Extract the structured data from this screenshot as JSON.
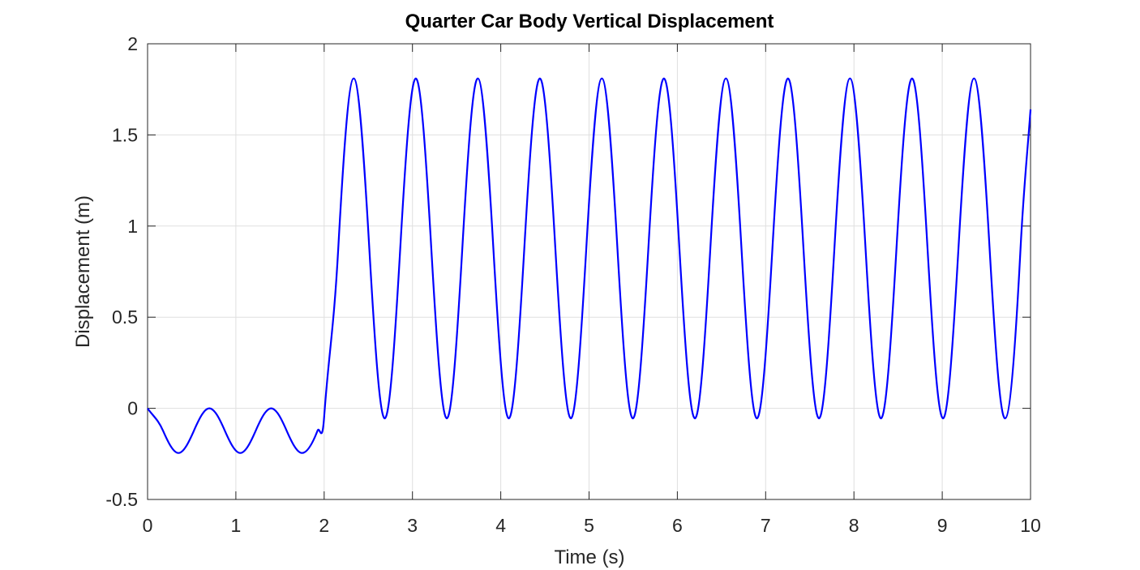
{
  "chart_data": {
    "type": "line",
    "title": "Quarter Car Body Vertical Displacement",
    "xlabel": "Time (s)",
    "ylabel": "Displacement (m)",
    "x": [
      0,
      0.175,
      0.35,
      0.525,
      0.7,
      0.875,
      1.05,
      1.225,
      1.4,
      1.575,
      1.75,
      1.925,
      2.0,
      2.16,
      2.335,
      2.511,
      2.686,
      2.862,
      3.038,
      3.213,
      3.389,
      3.565,
      3.74,
      3.916,
      4.091,
      4.267,
      4.443,
      4.618,
      4.794,
      4.969,
      5.145,
      5.321,
      5.496,
      5.672,
      5.848,
      6.023,
      6.199,
      6.374,
      6.55,
      6.726,
      6.901,
      7.077,
      7.253,
      7.428,
      7.604,
      7.779,
      7.955,
      8.131,
      8.306,
      8.482,
      8.658,
      8.833,
      9.009,
      9.184,
      9.36,
      9.536,
      9.711,
      9.887,
      10
    ],
    "series": [
      {
        "color": "#0000ff",
        "values": [
          0,
          -0.1225,
          -0.245,
          -0.1225,
          0,
          -0.1225,
          -0.245,
          -0.1225,
          0,
          -0.1225,
          -0.245,
          -0.1225,
          -0.046,
          0.88,
          1.81,
          0.88,
          -0.055,
          0.88,
          1.81,
          0.88,
          -0.055,
          0.88,
          1.81,
          0.88,
          -0.055,
          0.88,
          1.81,
          0.88,
          -0.055,
          0.88,
          1.81,
          0.88,
          -0.055,
          0.88,
          1.81,
          0.88,
          -0.055,
          0.88,
          1.81,
          0.88,
          -0.055,
          0.88,
          1.81,
          0.88,
          -0.055,
          0.88,
          1.81,
          0.88,
          -0.055,
          0.88,
          1.81,
          0.88,
          -0.055,
          0.88,
          1.81,
          0.88,
          -0.055,
          0.88,
          1.64
        ]
      }
    ],
    "xlim": [
      0,
      10
    ],
    "xticks": [
      0,
      1,
      2,
      3,
      4,
      5,
      6,
      7,
      8,
      9,
      10
    ],
    "ylim": [
      -0.5,
      2
    ],
    "yticks": [
      -0.5,
      0,
      0.5,
      1,
      1.5,
      2
    ],
    "grid": true
  }
}
